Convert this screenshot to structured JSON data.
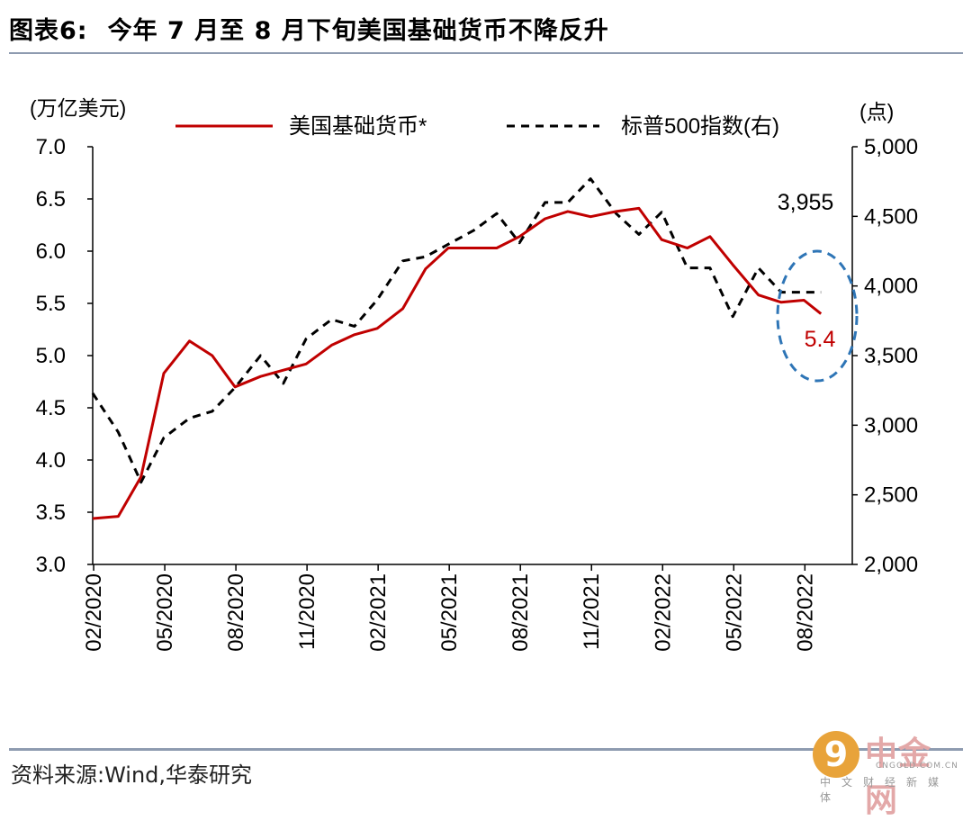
{
  "header": {
    "label": "图表6:",
    "title": "今年 7 月至 8 月下旬美国基础货币不降反升"
  },
  "source": "资料来源:Wind,华泰研究",
  "watermark": {
    "name": "中金网",
    "url": "CNGOLD.COM.CN",
    "sub": "中文财经新媒体"
  },
  "chart_data": {
    "type": "line",
    "y_left_unit": "(万亿美元)",
    "y_right_unit": "(点)",
    "ylim_left": [
      3.0,
      7.0
    ],
    "ylim_right": [
      2000,
      5000
    ],
    "yticks_left": [
      "3.0",
      "3.5",
      "4.0",
      "4.5",
      "5.0",
      "5.5",
      "6.0",
      "6.5",
      "7.0"
    ],
    "yticks_right": [
      "2,000",
      "2,500",
      "3,000",
      "3,500",
      "4,000",
      "4,500",
      "5,000"
    ],
    "x_ticks": [
      "02/2020",
      "05/2020",
      "08/2020",
      "11/2020",
      "02/2021",
      "05/2021",
      "08/2021",
      "11/2021",
      "02/2022",
      "05/2022",
      "08/2022"
    ],
    "legend_placement": "top",
    "series": [
      {
        "name": "美国基础货币*",
        "axis": "left",
        "color": "#c00000",
        "style": "solid",
        "x": [
          2020.08,
          2020.17,
          2020.25,
          2020.33,
          2020.42,
          2020.5,
          2020.58,
          2020.67,
          2020.75,
          2020.83,
          2020.92,
          2021.0,
          2021.08,
          2021.17,
          2021.25,
          2021.33,
          2021.42,
          2021.5,
          2021.58,
          2021.67,
          2021.75,
          2021.83,
          2021.92,
          2022.0,
          2022.08,
          2022.17,
          2022.25,
          2022.33,
          2022.42,
          2022.5,
          2022.58,
          2022.64
        ],
        "values": [
          3.44,
          3.46,
          3.84,
          4.83,
          5.14,
          5.0,
          4.7,
          4.8,
          4.86,
          4.92,
          5.1,
          5.2,
          5.26,
          5.45,
          5.83,
          6.03,
          6.03,
          6.03,
          6.14,
          6.31,
          6.38,
          6.33,
          6.38,
          6.41,
          6.11,
          6.03,
          6.14,
          5.87,
          5.58,
          5.51,
          5.53,
          5.4
        ]
      },
      {
        "name": "标普500指数(右)",
        "axis": "right",
        "color": "#000000",
        "style": "dashed",
        "x": [
          2020.08,
          2020.17,
          2020.25,
          2020.33,
          2020.42,
          2020.5,
          2020.58,
          2020.67,
          2020.75,
          2020.83,
          2020.92,
          2021.0,
          2021.08,
          2021.17,
          2021.25,
          2021.33,
          2021.42,
          2021.5,
          2021.58,
          2021.67,
          2021.75,
          2021.83,
          2021.92,
          2022.0,
          2022.08,
          2022.17,
          2022.25,
          2022.33,
          2022.42,
          2022.5,
          2022.58,
          2022.64
        ],
        "values": [
          3230,
          2950,
          2590,
          2910,
          3050,
          3100,
          3270,
          3500,
          3300,
          3620,
          3760,
          3710,
          3900,
          4180,
          4210,
          4300,
          4400,
          4520,
          4310,
          4600,
          4600,
          4770,
          4520,
          4370,
          4530,
          4130,
          4130,
          3780,
          4130,
          3955,
          3955,
          3955
        ]
      }
    ],
    "annotations": [
      {
        "text": "3,955",
        "series": "标普500指数(右)"
      },
      {
        "text": "5.4",
        "series": "美国基础货币*"
      }
    ]
  }
}
